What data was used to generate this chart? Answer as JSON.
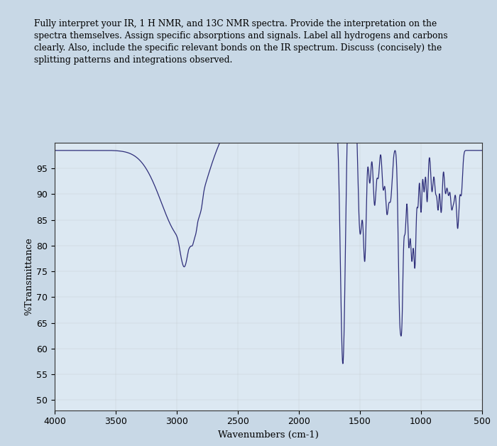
{
  "title_text": "Fully interpret your IR, 1 H NMR, and 13C NMR spectra. Provide the interpretation on the\nspectra themselves. Assign specific absorptions and signals. Label all hydrogens and carbons\nclearly. Also, include the specific relevant bonds on the IR spectrum. Discuss (concisely) the\nsplitting patterns and integrations observed.",
  "xlabel": "Wavenumbers (cm-1)",
  "ylabel": "%Transmittance",
  "xlim": [
    4000,
    500
  ],
  "ylim": [
    48,
    100
  ],
  "yticks": [
    50,
    55,
    60,
    65,
    70,
    75,
    80,
    85,
    90,
    95
  ],
  "xticks": [
    4000,
    3500,
    3000,
    2500,
    2000,
    1500,
    1000,
    500
  ],
  "line_color": "#2e2e7a",
  "plot_bg": "#dce8f2",
  "fig_bg": "#c8d8e6",
  "text_bg": "#dce8f0",
  "title_fontsize": 8.8,
  "axis_fontsize": 9.5,
  "tick_fontsize": 9.0
}
